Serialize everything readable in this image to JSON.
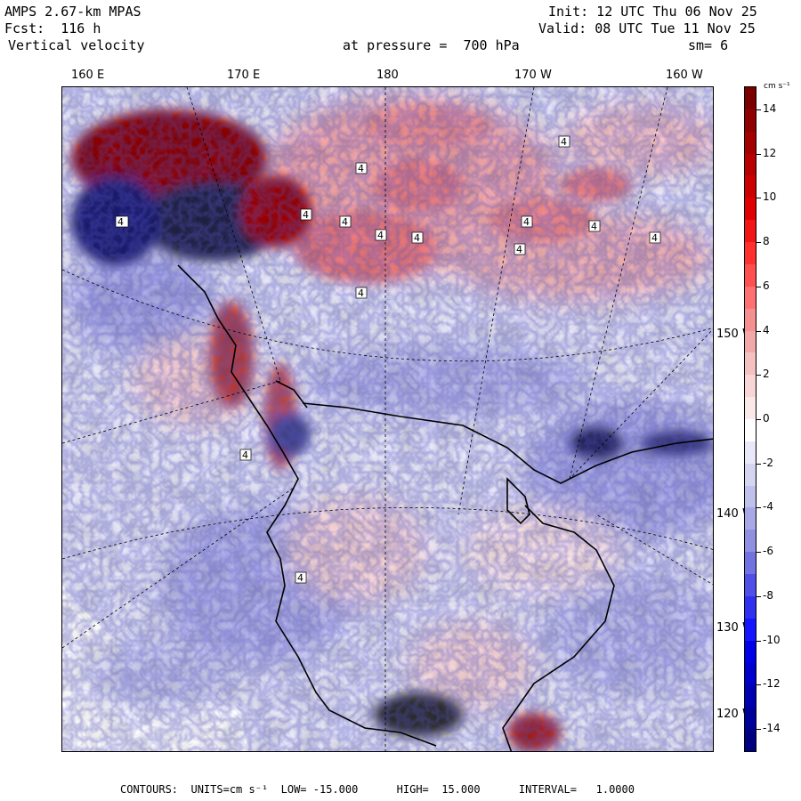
{
  "header": {
    "model": "AMPS 2.67-km MPAS",
    "forecast": "Fcst:  116 h",
    "field": "Vertical velocity",
    "pressure": "at pressure =  700 hPa",
    "init": "Init: 12 UTC Thu 06 Nov 25",
    "valid": "Valid: 08 UTC Tue 11 Nov 25",
    "smooth": "sm= 6"
  },
  "map": {
    "longitude_labels": [
      "160 E",
      "170 E",
      "180",
      "170 W",
      "160 W"
    ],
    "latitude_labels": [
      "150 W",
      "140 W",
      "130 W",
      "120 W"
    ]
  },
  "colorbar": {
    "unit": "cm s⁻¹",
    "levels": [
      15,
      14,
      13,
      12,
      11,
      10,
      9,
      8,
      7,
      6,
      5,
      4,
      3,
      2,
      1,
      0,
      -1,
      -2,
      -3,
      -4,
      -5,
      -6,
      -7,
      -8,
      -9,
      -10,
      -11,
      -12,
      -13,
      -14,
      -15
    ],
    "tick_labels": [
      "14",
      "12",
      "10",
      "8",
      "6",
      "4",
      "2",
      "0",
      "-2",
      "-4",
      "-6",
      "-8",
      "-10",
      "-12",
      "-14"
    ],
    "colors": [
      "#7a0000",
      "#8f0000",
      "#a30000",
      "#b80000",
      "#cc0000",
      "#e00000",
      "#f21515",
      "#ff3030",
      "#ff5050",
      "#ff7070",
      "#f59090",
      "#f2a8a8",
      "#f5c0c0",
      "#f8d6d6",
      "#fbe8e8",
      "#ffffff",
      "#e8e8f8",
      "#d5d5f2",
      "#c0c0ec",
      "#a8a8e6",
      "#9090e0",
      "#7272e0",
      "#5050e8",
      "#3030f0",
      "#1515ff",
      "#0000e6",
      "#0000cc",
      "#0000b3",
      "#00009a",
      "#000080"
    ]
  },
  "footer": {
    "text": "CONTOURS:  UNITS=cm s⁻¹  LOW= -15.000      HIGH=  15.000      INTERVAL=   1.0000"
  }
}
